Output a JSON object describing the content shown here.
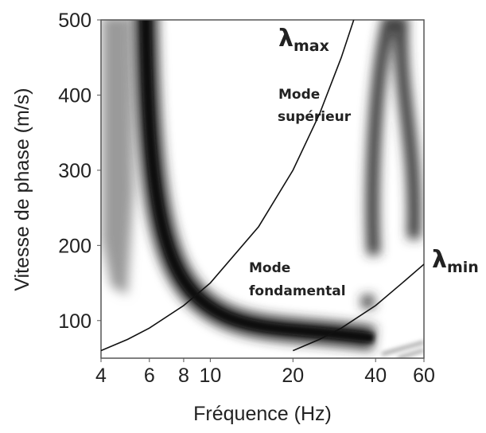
{
  "chart_data": {
    "type": "line",
    "xlabel": "Fréquence (Hz)",
    "ylabel": "Vitesse de phase (m/s)",
    "xscale": "log",
    "xlim": [
      4,
      60
    ],
    "ylim": [
      50,
      500
    ],
    "xticks": [
      4,
      6,
      8,
      10,
      20,
      40,
      60
    ],
    "yticks": [
      100,
      200,
      300,
      400,
      500
    ],
    "series": [
      {
        "color": "#111111",
        "x": [
          4,
          5,
          6,
          8,
          10,
          15,
          20,
          25,
          30,
          33.3
        ],
        "values": [
          60,
          75,
          90,
          120,
          150,
          225,
          300,
          375,
          450,
          500
        ]
      },
      {
        "color": "#111111",
        "x": [
          20,
          25,
          30,
          40,
          50,
          60
        ],
        "values": [
          60,
          75,
          90,
          120,
          150,
          175
        ]
      }
    ],
    "annotations": [
      {
        "text": "λ",
        "sub": "max"
      },
      {
        "text": "λ",
        "sub": "min"
      },
      {
        "text": "Mode",
        "text2": "supérieur"
      },
      {
        "text": "Mode",
        "text2": "fondamental"
      }
    ]
  }
}
